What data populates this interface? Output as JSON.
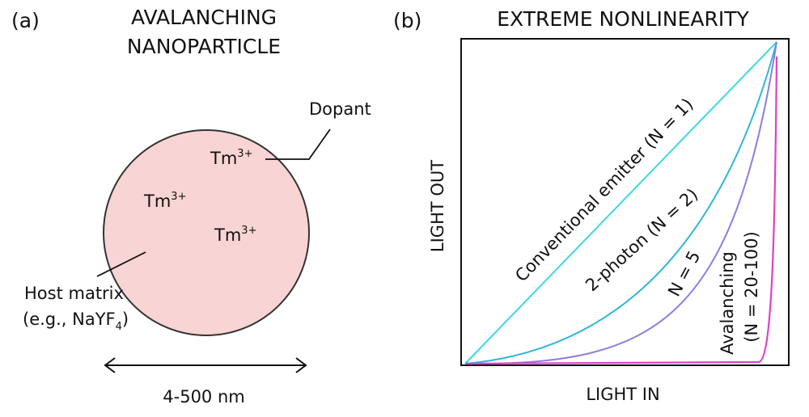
{
  "panel_a": {
    "label": "(a)",
    "title_lines": [
      "AVALANCHING",
      "NANOPARTICLE"
    ],
    "ions": [
      {
        "symbol": "Tm",
        "charge": "3+"
      },
      {
        "symbol": "Tm",
        "charge": "3+"
      },
      {
        "symbol": "Tm",
        "charge": "3+"
      }
    ],
    "dopant_label": "Dopant",
    "host_label": {
      "line1": "Host matrix",
      "line2_start": "(e.g., NaYF",
      "line2_subscript": "4",
      "line2_end": ")"
    },
    "size_label": "4-500 nm"
  },
  "panel_b": {
    "label": "(b)",
    "title": "EXTREME NONLINEARITY",
    "x_label": "LIGHT IN",
    "y_label": "LIGHT OUT",
    "curve_labels": [
      "Conventional emitter (N = 1)",
      "2-photon (N = 2)",
      "N = 5",
      "Avalanching",
      "(N = 20-100)"
    ]
  }
}
